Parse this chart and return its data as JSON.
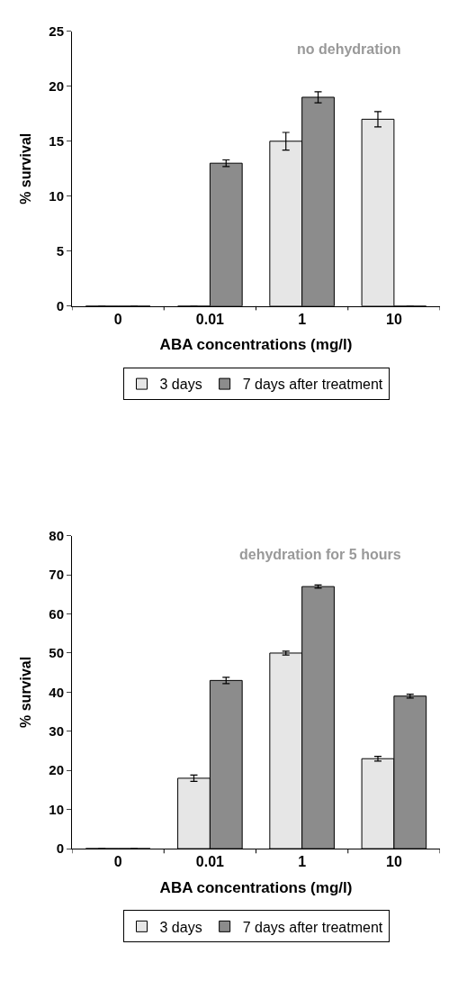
{
  "chart_data": [
    {
      "type": "bar",
      "xlabel": "ABA concentrations (mg/l)",
      "ylabel": "% survival",
      "annotations": [
        "no dehydration"
      ],
      "categories": [
        "0",
        "0.01",
        "1",
        "10"
      ],
      "series": [
        {
          "name": "3 days",
          "color": "#e6e6e6",
          "values": [
            0,
            0,
            15,
            17
          ],
          "errors": [
            null,
            null,
            0.8,
            0.7
          ]
        },
        {
          "name": "7 days after treatment",
          "color": "#8c8c8c",
          "values": [
            0,
            13,
            19,
            0
          ],
          "errors": [
            null,
            0.3,
            0.5,
            null
          ]
        }
      ],
      "ylim": [
        0,
        25
      ],
      "yticks": [
        0,
        5,
        10,
        15,
        20,
        25
      ],
      "legend": "bottom"
    },
    {
      "type": "bar",
      "xlabel": "ABA concentrations (mg/l)",
      "ylabel": "% survival",
      "annotations": [
        "dehydration for 5 hours"
      ],
      "categories": [
        "0",
        "0.01",
        "1",
        "10"
      ],
      "series": [
        {
          "name": "3 days",
          "color": "#e6e6e6",
          "values": [
            0,
            18,
            50,
            23
          ],
          "errors": [
            null,
            0.8,
            0.5,
            0.6
          ]
        },
        {
          "name": "7 days after treatment",
          "color": "#8c8c8c",
          "values": [
            0,
            43,
            67,
            39
          ],
          "errors": [
            null,
            0.8,
            0.4,
            0.5
          ]
        }
      ],
      "ylim": [
        0,
        80
      ],
      "yticks": [
        0,
        10,
        20,
        30,
        40,
        50,
        60,
        70,
        80
      ],
      "legend": "bottom"
    }
  ]
}
